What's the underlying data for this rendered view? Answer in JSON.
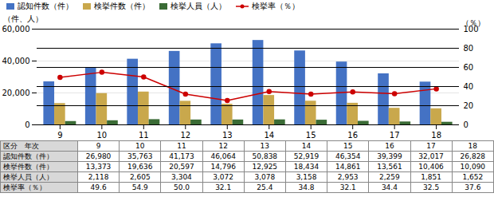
{
  "chart_data": {
    "type": "bar",
    "categories": [
      "9",
      "10",
      "11",
      "12",
      "13",
      "14",
      "15",
      "16",
      "17",
      "18"
    ],
    "series": [
      {
        "name": "認知件数（件）",
        "color": "#4472C4",
        "values": [
          26980,
          35763,
          41173,
          46064,
          50838,
          52919,
          46354,
          39399,
          32017,
          26828
        ]
      },
      {
        "name": "検挙件数（件）",
        "color": "#C9A84C",
        "values": [
          13373,
          19636,
          20597,
          14796,
          12925,
          18434,
          14861,
          13561,
          10406,
          10090
        ]
      },
      {
        "name": "検挙人員（人）",
        "color": "#3A6B35",
        "values": [
          2118,
          2605,
          3304,
          3072,
          3078,
          3158,
          2953,
          2259,
          1851,
          1652
        ]
      },
      {
        "name": "検挙率（％）",
        "color": "#CC0000",
        "type": "line",
        "marker": "circle",
        "axis": "y2",
        "values": [
          49.6,
          54.9,
          50.0,
          32.1,
          25.4,
          34.8,
          32.1,
          34.4,
          32.5,
          37.6
        ]
      }
    ],
    "ylabel": "（件、人）",
    "y2label": "（％）",
    "ylim": [
      0,
      60000
    ],
    "yticks": [
      0,
      {
        "value": 20000,
        "label": "20,000"
      },
      {
        "value": 40000,
        "label": "40,000"
      },
      {
        "value": 60000,
        "label": "60,000"
      }
    ],
    "y2lim": [
      0,
      100
    ],
    "y2ticks": [
      0,
      20,
      40,
      60,
      80,
      100
    ],
    "grid": true,
    "legend": "top",
    "table": {
      "row_labels": [
        "区分　年次",
        "認知件数（件）",
        "検挙件数（件）",
        "検挙人員（人）",
        "検挙率（％）"
      ],
      "rows": [
        [
          "9",
          "10",
          "11",
          "12",
          "13",
          "14",
          "15",
          "16",
          "17",
          "18"
        ],
        [
          "26,980",
          "35,763",
          "41,173",
          "46,064",
          "50,838",
          "52,919",
          "46,354",
          "39,399",
          "32,017",
          "26,828"
        ],
        [
          "13,373",
          "19,636",
          "20,597",
          "14,796",
          "12,925",
          "18,434",
          "14,861",
          "13,561",
          "10,406",
          "10,090"
        ],
        [
          "2,118",
          "2,605",
          "3,304",
          "3,072",
          "3,078",
          "3,158",
          "2,953",
          "2,259",
          "1,851",
          "1,652"
        ],
        [
          "49.6",
          "54.9",
          "50.0",
          "32.1",
          "25.4",
          "34.8",
          "32.1",
          "34.4",
          "32.5",
          "37.6"
        ]
      ]
    }
  }
}
